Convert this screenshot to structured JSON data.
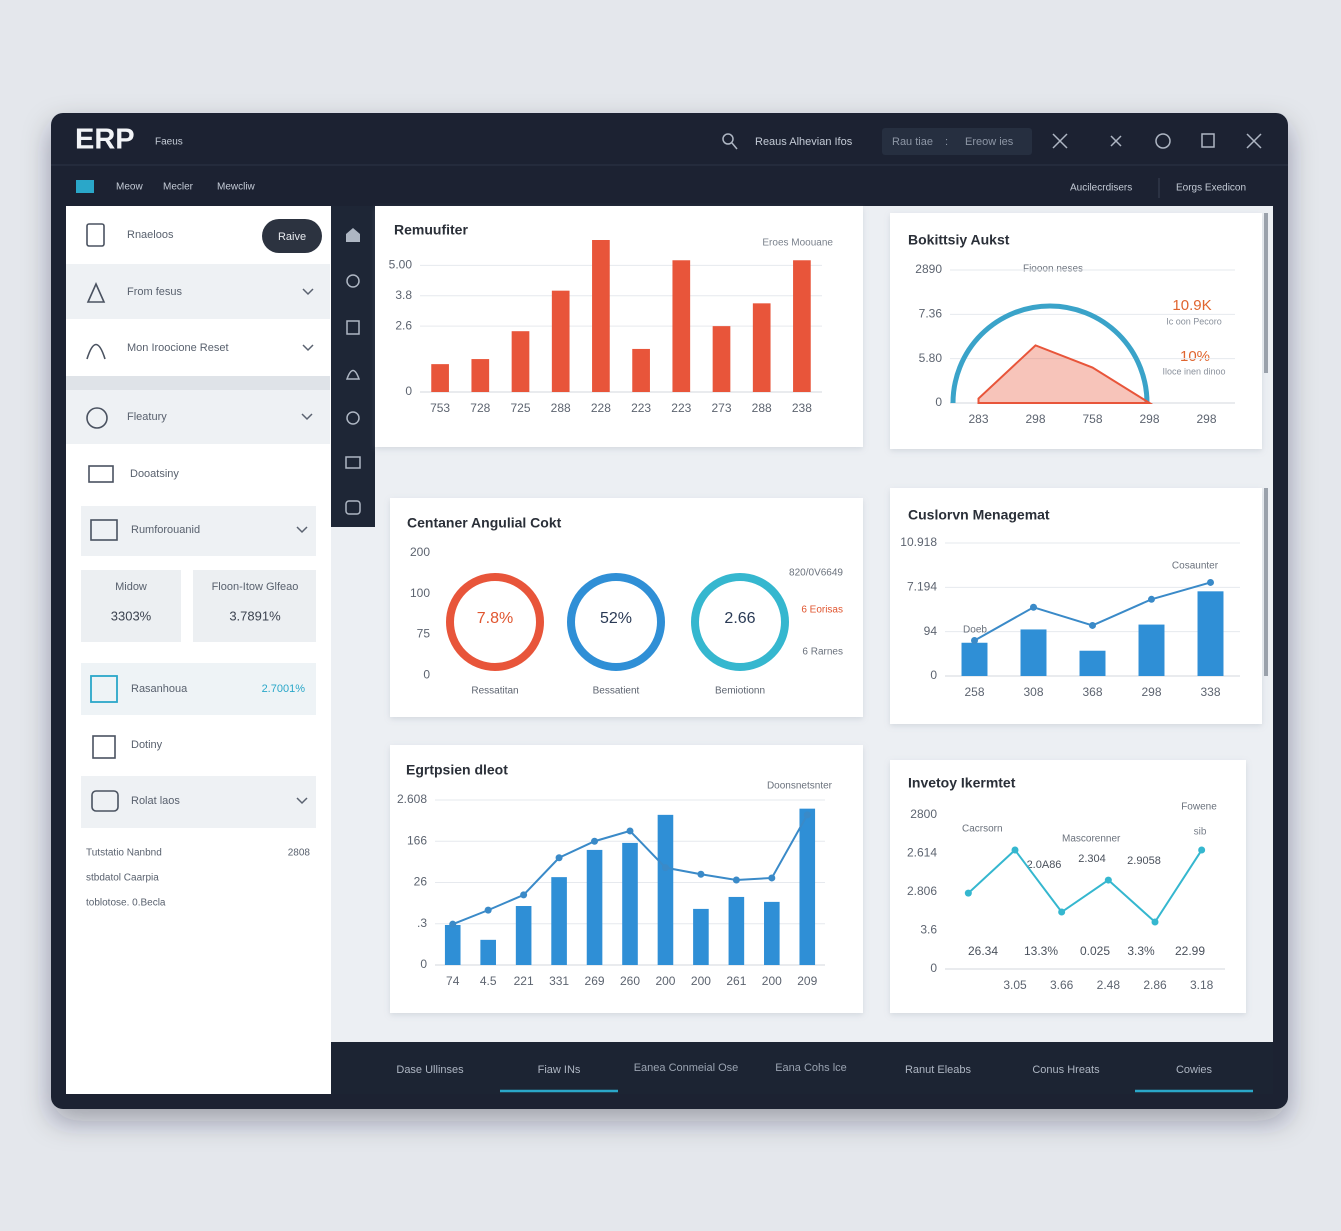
{
  "header": {
    "logo": "ERP",
    "subtitle": "Faeus",
    "search": "Reaus Alhevian Ifos",
    "range_start": "Rau tiae",
    "range_sep": ":",
    "range_end": "Ereow ies"
  },
  "nav": {
    "items": [
      "Meow",
      "Mecler",
      "Mewcliw"
    ],
    "right": [
      "Aucilecrdisers",
      "Eorgs Exedicon"
    ]
  },
  "sidebar": {
    "menu": [
      "Rnaeloos",
      "From fesus",
      "Mon Iroocione Reset",
      "Fleatury",
      "Dooatsiny",
      "Rumforouanid"
    ],
    "button": "Raive",
    "stats": [
      {
        "label": "Midow",
        "value": "3303%"
      },
      {
        "label": "Floon-Itow Glfeao",
        "value": "3.7891%"
      }
    ],
    "highlight": {
      "label": "Rasanhoua",
      "value": "2.7001%"
    },
    "menu2": [
      "Dotiny",
      "Rolat laos"
    ],
    "notes": [
      "Tutstatio Nanbnd",
      "stbdatol Caarpia",
      "toblotose. 0.Becla"
    ],
    "notes_value": "2808"
  },
  "chart_data": [
    {
      "type": "bar",
      "title": "Remuufiter",
      "categories": [
        "753",
        "728",
        "725",
        "288",
        "228",
        "223",
        "223",
        "273",
        "288",
        "238"
      ],
      "values": [
        1.1,
        1.3,
        2.4,
        4.0,
        6.0,
        1.7,
        5.2,
        2.6,
        3.5,
        5.2
      ],
      "color": "#e8553a",
      "ylim": [
        0,
        6
      ],
      "yticks": [
        0,
        2.6,
        3.8,
        {
          "value": 5,
          "label": "5.00"
        }
      ],
      "grid": true,
      "annotations": [
        "Eroes Moouane"
      ]
    },
    {
      "type": "area",
      "title": "Bokittsiy Aukst",
      "categories": [
        "283",
        "298",
        "758",
        "298",
        "298"
      ],
      "values": [
        0.1,
        1.3,
        0.8,
        0,
        null
      ],
      "color": "#e8553a",
      "ylim": [
        0,
        3
      ],
      "yticks": [
        0,
        {
          "value": 1,
          "label": "5.80"
        },
        {
          "value": 2,
          "label": "7.36"
        },
        {
          "value": 3,
          "label": "2890"
        }
      ],
      "grid": true,
      "annotations": [
        "Fiooon neses",
        "10.9K",
        "Ic oon Pecoro",
        "10%",
        "Iloce inen dinoo"
      ]
    },
    {
      "type": "donut",
      "title": "Centaner Angulial Cokt",
      "categories": [
        "Ressatitan",
        "Bessatient",
        "Bemiotionn"
      ],
      "values": [
        7.8,
        52,
        2.66
      ],
      "value_labels": [
        "7.8%",
        "52%",
        "2.66"
      ],
      "colors": [
        "#e8553a",
        "#2f8fd6",
        "#35b7cf"
      ],
      "axis_labels": [
        "200",
        "100",
        "75",
        "0"
      ],
      "legend": [
        "820/0V6649",
        "6 Eorisas",
        "6 Rarnes"
      ]
    },
    {
      "type": "bar",
      "title": "Cuslorvn Menagemat",
      "categories": [
        "258",
        "308",
        "368",
        "298",
        "338"
      ],
      "series": [
        {
          "name": "Doeb",
          "color": "#2f8fd6",
          "values": [
            0.75,
            1.05,
            0.57,
            1.16,
            1.91
          ]
        },
        {
          "name": "Cosaunter",
          "type": "line",
          "color": "#3a8ac8",
          "values": [
            0.8,
            1.55,
            1.14,
            1.73,
            2.11
          ]
        }
      ],
      "ylim": [
        0,
        3
      ],
      "yticks": [
        0,
        {
          "value": 1,
          "label": "94"
        },
        {
          "value": 2,
          "label": "7.194"
        },
        {
          "value": 3,
          "label": "10.918"
        }
      ],
      "grid": true
    },
    {
      "type": "bar",
      "title": "Egrtpsien dleot",
      "categories": [
        "74",
        "4.5",
        "221",
        "331",
        "269",
        "260",
        "200",
        "200",
        "261",
        "200",
        "209"
      ],
      "series": [
        {
          "name": "Doonsnetsnter",
          "color": "#2f8fd6",
          "values": [
            0.97,
            0.61,
            1.43,
            2.13,
            2.79,
            2.96,
            3.64,
            1.36,
            1.65,
            1.53,
            3.79
          ]
        },
        {
          "type": "line",
          "color": "#3a8ac8",
          "values": [
            0.99,
            1.33,
            1.7,
            2.6,
            3.0,
            3.25,
            2.36,
            2.2,
            2.06,
            2.11,
            3.64
          ]
        }
      ],
      "ylim": [
        0,
        4
      ],
      "yticks": [
        0,
        {
          "value": 1,
          "label": ".3"
        },
        {
          "value": 2,
          "label": "26"
        },
        {
          "value": 3,
          "label": "166"
        },
        {
          "value": 4,
          "label": "2.608"
        }
      ],
      "grid": true
    },
    {
      "type": "line",
      "title": "Invetoy Ikermtet",
      "categories": [
        null,
        "3.05",
        "3.66",
        "2.48",
        "2.86",
        "3.18"
      ],
      "series": [
        {
          "name": "Fowene",
          "color": "#35b7cf",
          "values": [
            1.97,
            3.09,
            1.48,
            2.31,
            1.22,
            3.09
          ]
        }
      ],
      "ylim": [
        0,
        4
      ],
      "yticks": [
        0,
        {
          "value": 1,
          "label": "3.6"
        },
        {
          "value": 2,
          "label": "2.806"
        },
        {
          "value": 3,
          "label": "2.614"
        },
        {
          "value": 4,
          "label": "2800"
        }
      ],
      "grid": false,
      "annotations": [
        "sib",
        "Cacrsorn",
        "Mascorenner",
        "2.0A86",
        "2.304",
        "2.9058",
        "26.34",
        "13.3%",
        "0.025",
        "3.3%",
        "22.99"
      ]
    }
  ],
  "tabs": [
    "Dase Ullinses",
    "Fiaw INs",
    "Eanea Conmeial Ose",
    "Eana Cohs lce",
    "Ranut Eleabs",
    "Conus Hreats",
    "Cowies"
  ]
}
